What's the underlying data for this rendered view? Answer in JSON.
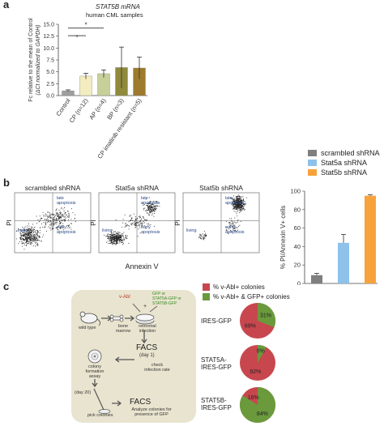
{
  "panels": {
    "a": "a",
    "b": "b",
    "c": "c"
  },
  "chart_a": {
    "type": "bar",
    "title_line1": "STAT5B mRNA",
    "title_line2": "human CML samples",
    "ylabel_line1": "Fc relative to the mean of Control",
    "ylabel_line2": "(ΔCt normalized to GAPDH)",
    "ylim": [
      0,
      15
    ],
    "yticks": [
      "0.0",
      "2.5",
      "5.0",
      "7.5",
      "10.0",
      "12.5",
      "15.0"
    ],
    "categories": [
      "Control",
      "CP (n=12)",
      "AP (n=4)",
      "BP (n=3)",
      "CP imatinib resistant (n=5)"
    ],
    "values": [
      1.0,
      4.1,
      4.6,
      5.9,
      5.8
    ],
    "errors": [
      0.2,
      0.6,
      0.8,
      4.3,
      2.3
    ],
    "colors": [
      "#9e9e9e",
      "#f3ecc0",
      "#c8d09a",
      "#8f8a3c",
      "#9e7a2c"
    ],
    "significance": [
      "*",
      "*"
    ]
  },
  "legend_top": {
    "items": [
      {
        "label": "scrambled shRNA",
        "color": "#7f7f7f"
      },
      {
        "label": "Stat5a shRNA",
        "color": "#8ec2ea"
      },
      {
        "label": "Stat5b shRNA",
        "color": "#f7a23c"
      }
    ]
  },
  "flow_panels": [
    {
      "title": "scrambled shRNA",
      "late": "late apoptosis",
      "early": "early apoptosis",
      "living": "living"
    },
    {
      "title": "Stat5a shRNA",
      "late": "late apoptosis",
      "early": "early apoptosis",
      "living": "living"
    },
    {
      "title": "Stat5b shRNA",
      "late": "late apoptosis",
      "early": "early apoptosis",
      "living": "living"
    }
  ],
  "flow_axes": {
    "ylabel": "PI",
    "xlabel": "Annexin V"
  },
  "chart_b": {
    "type": "bar",
    "ylabel": "% PI/Annexin V+ cells",
    "ylim": [
      0,
      100
    ],
    "yticks": [
      "0",
      "20",
      "40",
      "60",
      "80",
      "100"
    ],
    "categories": [
      "scrambled shRNA",
      "Stat5a shRNA",
      "Stat5b shRNA"
    ],
    "values": [
      9,
      44,
      95
    ],
    "errors": [
      2,
      9,
      1
    ],
    "colors": [
      "#7f7f7f",
      "#8ec2ea",
      "#f7a23c"
    ]
  },
  "workflow": {
    "vabl": "v-Abl",
    "gfp": "GFP or",
    "stat5a": "STAT5A-GFP or",
    "stat5b": "STAT5B-GFP",
    "wild_type": "wild type",
    "bone_marrow": "bone marrow",
    "retroviral": "retroviral infection",
    "facs1": "FACS",
    "day1": "(day 1)",
    "check": "check infection rate",
    "colony": "colony formation assay",
    "day20": "(day 20)",
    "pick": "pick colonies",
    "facs2": "FACS",
    "analyze": "Analyze colonies for presence of GFP"
  },
  "pie_legend": {
    "items": [
      {
        "label": "% v-Abl+ colonies",
        "color": "#c8474e"
      },
      {
        "label": "% v-Abl+ & GFP+ colonies",
        "color": "#6a9a3c"
      }
    ]
  },
  "pies": [
    {
      "label": "IRES-GFP",
      "green_pct": 31,
      "red_pct": 69,
      "green_label": "31%",
      "red_label": "69%"
    },
    {
      "label": "STAT5A-IRES-GFP",
      "green_pct": 8,
      "red_pct": 92,
      "green_label": "8%",
      "red_label": "92%"
    },
    {
      "label": "STAT5B-IRES-GFP",
      "green_pct": 84,
      "red_pct": 16,
      "green_label": "84%",
      "red_label": "16%"
    }
  ],
  "pie_label_lines": [
    [
      "IRES-GFP"
    ],
    [
      "STAT5A-",
      "IRES-GFP"
    ],
    [
      "STAT5B-",
      "IRES-GFP"
    ]
  ]
}
